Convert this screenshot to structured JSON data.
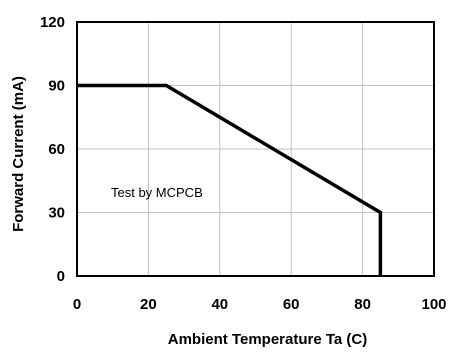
{
  "chart_data": {
    "type": "line",
    "title": "",
    "xlabel": "Ambient Temperature Ta (C)",
    "ylabel": "Forward Current (mA)",
    "xlim": [
      0,
      100
    ],
    "ylim": [
      0,
      120
    ],
    "xticks": [
      0,
      20,
      40,
      60,
      80,
      100
    ],
    "yticks": [
      0,
      30,
      60,
      90,
      120
    ],
    "grid": true,
    "legend": "none",
    "annotation": "Test by MCPCB",
    "colors": {
      "line": "#000000",
      "grid": "#c0c0c0",
      "frame": "#000000"
    },
    "series": [
      {
        "x": [
          0,
          25,
          85,
          85
        ],
        "y": [
          90,
          90,
          30,
          0
        ]
      }
    ]
  }
}
